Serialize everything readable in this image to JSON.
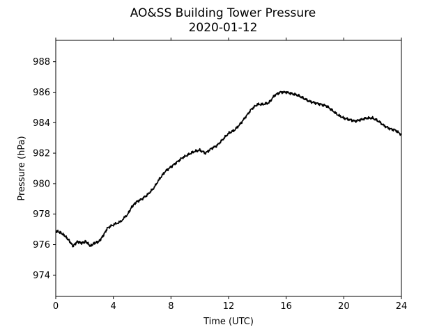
{
  "chart_data": {
    "type": "line",
    "title": "AO&SS Building Tower Pressure",
    "subtitle": "2020-01-12",
    "xlabel": "Time (UTC)",
    "ylabel": "Pressure (hPa)",
    "xlim": [
      0,
      24
    ],
    "ylim": [
      972.6,
      989.4
    ],
    "x_ticks": [
      0,
      4,
      8,
      12,
      16,
      20,
      24
    ],
    "y_ticks": [
      974,
      976,
      978,
      980,
      982,
      984,
      986,
      988
    ],
    "grid": false,
    "series": [
      {
        "color": "#000000",
        "x": [
          0,
          0.3,
          0.6,
          0.9,
          1.2,
          1.5,
          1.8,
          2.1,
          2.4,
          2.7,
          3.0,
          3.3,
          3.6,
          4.0,
          4.5,
          5.0,
          5.3,
          5.6,
          6.0,
          6.4,
          6.8,
          7.2,
          7.6,
          8.0,
          8.4,
          8.8,
          9.2,
          9.6,
          10.0,
          10.4,
          10.8,
          11.2,
          11.6,
          12.0,
          12.4,
          12.8,
          13.2,
          13.6,
          14.0,
          14.4,
          14.8,
          15.2,
          15.6,
          16.0,
          16.4,
          16.8,
          17.2,
          17.6,
          18.0,
          18.4,
          18.8,
          19.2,
          19.6,
          20.0,
          20.4,
          20.8,
          21.2,
          21.6,
          22.0,
          22.4,
          22.8,
          23.2,
          23.6,
          24.0
        ],
        "y": [
          976.9,
          976.8,
          976.6,
          976.3,
          975.9,
          976.2,
          976.1,
          976.2,
          975.9,
          976.1,
          976.2,
          976.6,
          977.1,
          977.3,
          977.5,
          978.0,
          978.5,
          978.8,
          979.0,
          979.3,
          979.7,
          980.3,
          980.8,
          981.1,
          981.4,
          981.7,
          981.9,
          982.1,
          982.2,
          982.0,
          982.3,
          982.5,
          982.9,
          983.3,
          983.5,
          983.9,
          984.4,
          984.9,
          985.2,
          985.2,
          985.3,
          985.8,
          986.0,
          986.0,
          985.9,
          985.8,
          985.6,
          985.4,
          985.3,
          985.2,
          985.1,
          984.8,
          984.5,
          984.3,
          984.2,
          984.1,
          984.2,
          984.3,
          984.3,
          984.1,
          983.8,
          983.6,
          983.5,
          983.2
        ]
      }
    ]
  }
}
